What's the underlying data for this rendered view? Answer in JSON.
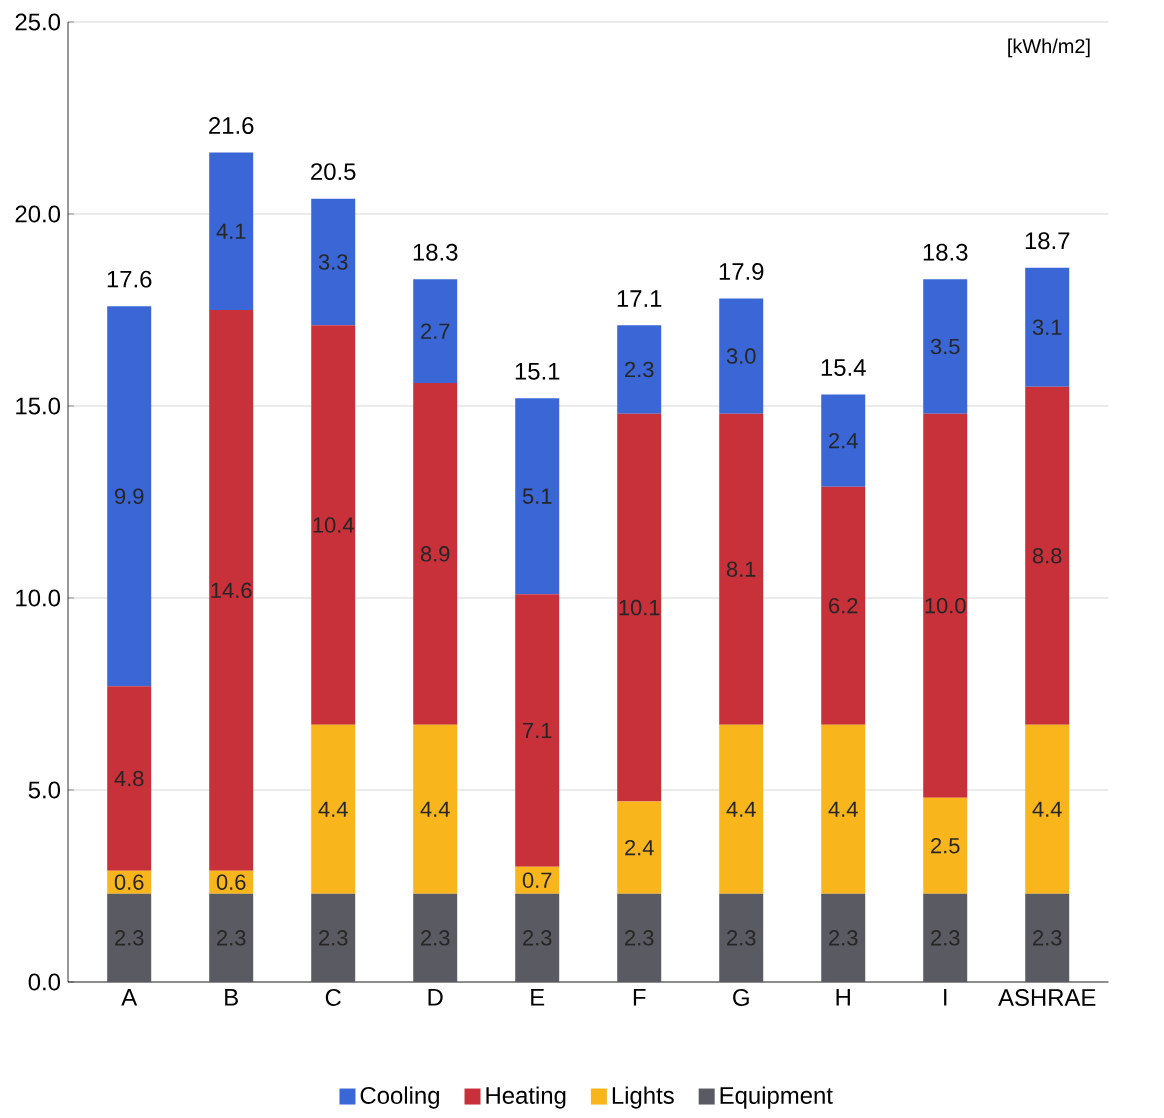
{
  "chart_data": {
    "type": "bar",
    "stacked": true,
    "categories": [
      "A",
      "B",
      "C",
      "D",
      "E",
      "F",
      "G",
      "H",
      "I",
      "ASHRAE"
    ],
    "series": [
      {
        "name": "Equipment",
        "color": "#5a5a62",
        "values": [
          2.3,
          2.3,
          2.3,
          2.3,
          2.3,
          2.3,
          2.3,
          2.3,
          2.3,
          2.3
        ],
        "value_labels": [
          "2.3",
          "2.3",
          "2.3",
          "2.3",
          "2.3",
          "2.3",
          "2.3",
          "2.3",
          "2.3",
          "2.3"
        ]
      },
      {
        "name": "Lights",
        "color": "#f8b51c",
        "values": [
          0.6,
          0.6,
          4.4,
          4.4,
          0.7,
          2.4,
          4.4,
          4.4,
          2.5,
          4.4
        ],
        "value_labels": [
          "0.6",
          "0.6",
          "4.4",
          "4.4",
          "0.7",
          "2.4",
          "4.4",
          "4.4",
          "2.5",
          "4.4"
        ]
      },
      {
        "name": "Heating",
        "color": "#c8303a",
        "values": [
          4.8,
          14.6,
          10.4,
          8.9,
          7.1,
          10.1,
          8.1,
          6.2,
          10.0,
          8.8
        ],
        "value_labels": [
          "4.8",
          "14.6",
          "10.4",
          "8.9",
          "7.1",
          "10.1",
          "8.1",
          "6.2",
          "10.0",
          "8.8"
        ]
      },
      {
        "name": "Cooling",
        "color": "#3a66d6",
        "values": [
          9.9,
          4.1,
          3.3,
          2.7,
          5.1,
          2.3,
          3.0,
          2.4,
          3.5,
          3.1
        ],
        "value_labels": [
          "9.9",
          "4.1",
          "3.3",
          "2.7",
          "5.1",
          "2.3",
          "3.0",
          "2.4",
          "3.5",
          "3.1"
        ]
      }
    ],
    "totals": [
      "17.6",
      "21.6",
      "20.5",
      "18.3",
      "15.1",
      "17.1",
      "17.9",
      "15.4",
      "18.3",
      "18.7"
    ],
    "ylim": [
      0,
      25
    ],
    "yticks": [
      {
        "value": 0,
        "label": "0.0"
      },
      {
        "value": 5,
        "label": "5.0"
      },
      {
        "value": 10,
        "label": "10.0"
      },
      {
        "value": 15,
        "label": "15.0"
      },
      {
        "value": 20,
        "label": "20.0"
      },
      {
        "value": 25,
        "label": "25.0"
      }
    ],
    "grid": "y",
    "legend": "bottom",
    "annotations": [
      "[kWh/m2]"
    ]
  }
}
